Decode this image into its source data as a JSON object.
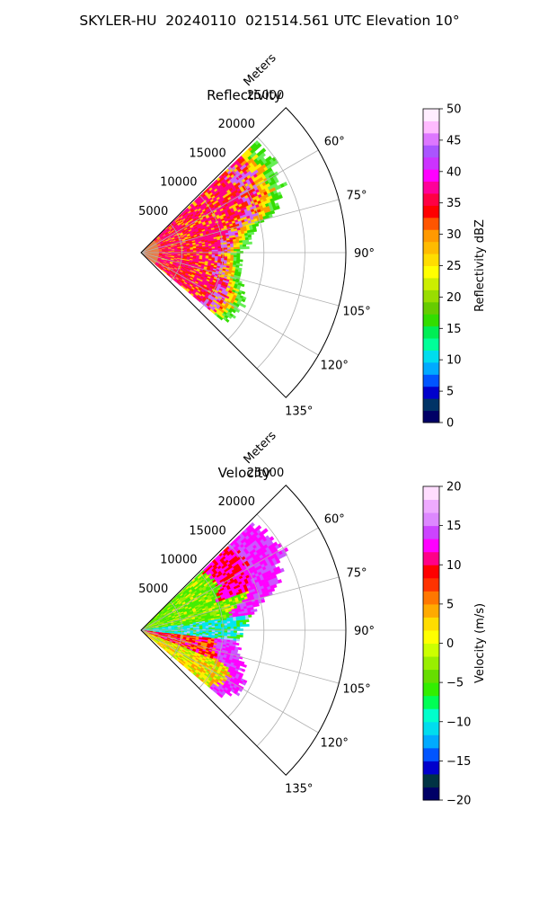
{
  "suptitle": "SKYLER-HU  20240110  021514.561 UTC Elevation 10°",
  "chart_data": [
    {
      "type": "heatmap",
      "projection": "polar-sector",
      "title": "Reflectivity",
      "range_label": "Meters",
      "range_ticks": [
        5000,
        10000,
        15000,
        20000,
        25000
      ],
      "range_max": 25000,
      "azimuth_range_deg": [
        45,
        135
      ],
      "azimuth_ticks": [
        "60°",
        "75°",
        "90°",
        "105°",
        "120°",
        "135°"
      ],
      "grid": true,
      "colorbar": {
        "label": "Reflectivity dBZ",
        "min": 0,
        "max": 50,
        "ticks": [
          0,
          5,
          10,
          15,
          20,
          25,
          30,
          35,
          40,
          45,
          50
        ],
        "colors": [
          "#000066",
          "#003366",
          "#0000cc",
          "#0055ff",
          "#00aaff",
          "#00ddee",
          "#00ff99",
          "#00ee55",
          "#33dd00",
          "#66cc00",
          "#99dd00",
          "#ccee00",
          "#ffff00",
          "#ffdd00",
          "#ffbb00",
          "#ff9900",
          "#ff5500",
          "#ff0000",
          "#ff0044",
          "#ff0099",
          "#ff00ff",
          "#cc33ff",
          "#aa55ff",
          "#dd77ff",
          "#ffbbff",
          "#ffeeff"
        ]
      },
      "echo_extent_m": [
        {
          "az": 48,
          "r": 19000
        },
        {
          "az": 60,
          "r": 19500
        },
        {
          "az": 70,
          "r": 17500
        },
        {
          "az": 78,
          "r": 14000
        },
        {
          "az": 90,
          "r": 12000
        },
        {
          "az": 100,
          "r": 12000
        },
        {
          "az": 110,
          "r": 13000
        },
        {
          "az": 120,
          "r": 14000
        },
        {
          "az": 127,
          "r": 13000
        }
      ]
    },
    {
      "type": "heatmap",
      "projection": "polar-sector",
      "title": "Velocity",
      "range_label": "Meters",
      "range_ticks": [
        5000,
        10000,
        15000,
        20000,
        25000
      ],
      "range_max": 25000,
      "azimuth_range_deg": [
        45,
        135
      ],
      "azimuth_ticks": [
        "60°",
        "75°",
        "90°",
        "105°",
        "120°",
        "135°"
      ],
      "grid": true,
      "colorbar": {
        "label": "Velocity (m/s)",
        "min": -20,
        "max": 20,
        "ticks": [
          -20,
          -15,
          -10,
          -5,
          0,
          5,
          10,
          15,
          20
        ],
        "colors": [
          "#000066",
          "#003344",
          "#0000cc",
          "#0055ff",
          "#00aaff",
          "#00ddee",
          "#00ffcc",
          "#00ff55",
          "#33ee00",
          "#66dd00",
          "#99ee00",
          "#ccff00",
          "#ffff00",
          "#ffdd00",
          "#ffaa00",
          "#ff7700",
          "#ff3300",
          "#ff0000",
          "#ff0088",
          "#ff00ff",
          "#cc44ff",
          "#dd88ff",
          "#eeaaff",
          "#ffddff"
        ]
      },
      "echo_extent_m": [
        {
          "az": 48,
          "r": 19000
        },
        {
          "az": 60,
          "r": 19500
        },
        {
          "az": 70,
          "r": 17500
        },
        {
          "az": 78,
          "r": 14000
        },
        {
          "az": 90,
          "r": 12000
        },
        {
          "az": 100,
          "r": 12000
        },
        {
          "az": 110,
          "r": 13000
        },
        {
          "az": 120,
          "r": 14000
        },
        {
          "az": 127,
          "r": 13000
        }
      ]
    }
  ]
}
